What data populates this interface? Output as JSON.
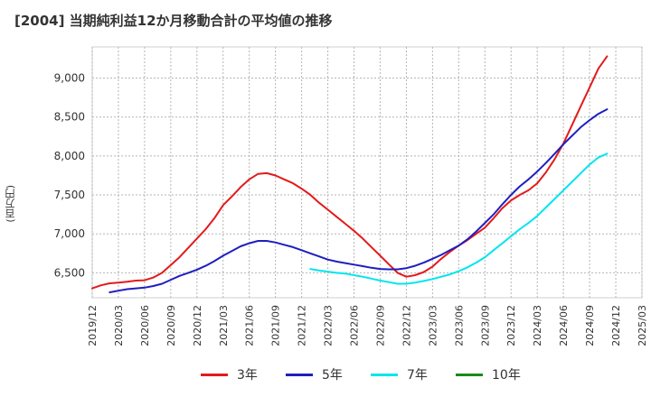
{
  "chart_data": {
    "type": "line",
    "title": "[2004]  当期純利益12か月移動合計の平均値の推移",
    "ylabel": "(百万円)",
    "xlabel": "",
    "ylim": [
      6180,
      9400
    ],
    "y_ticks": [
      6500,
      7000,
      7500,
      8000,
      8500,
      9000
    ],
    "y_tick_labels": [
      "6,500",
      "7,000",
      "7,500",
      "8,000",
      "8,500",
      "9,000"
    ],
    "x_range": [
      "2019-12",
      "2025-03"
    ],
    "x_tick_labels": [
      "2019/12",
      "2020/03",
      "2020/06",
      "2020/09",
      "2020/12",
      "2021/03",
      "2021/06",
      "2021/09",
      "2021/12",
      "2022/03",
      "2022/06",
      "2022/09",
      "2022/12",
      "2023/03",
      "2023/06",
      "2023/09",
      "2023/12",
      "2024/03",
      "2024/06",
      "2024/09",
      "2024/12",
      "2025/03"
    ],
    "grid": true,
    "legend_position": "bottom",
    "series": [
      {
        "name": "3年",
        "color": "#e31a1c",
        "points": [
          [
            "2019-12",
            6300
          ],
          [
            "2020-01",
            6340
          ],
          [
            "2020-02",
            6365
          ],
          [
            "2020-03",
            6375
          ],
          [
            "2020-04",
            6385
          ],
          [
            "2020-05",
            6400
          ],
          [
            "2020-06",
            6405
          ],
          [
            "2020-07",
            6440
          ],
          [
            "2020-08",
            6500
          ],
          [
            "2020-09",
            6600
          ],
          [
            "2020-10",
            6700
          ],
          [
            "2020-11",
            6820
          ],
          [
            "2020-12",
            6940
          ],
          [
            "2021-01",
            7060
          ],
          [
            "2021-02",
            7200
          ],
          [
            "2021-03",
            7370
          ],
          [
            "2021-04",
            7480
          ],
          [
            "2021-05",
            7600
          ],
          [
            "2021-06",
            7700
          ],
          [
            "2021-07",
            7770
          ],
          [
            "2021-08",
            7780
          ],
          [
            "2021-09",
            7750
          ],
          [
            "2021-10",
            7700
          ],
          [
            "2021-11",
            7650
          ],
          [
            "2021-12",
            7580
          ],
          [
            "2022-01",
            7500
          ],
          [
            "2022-02",
            7400
          ],
          [
            "2022-03",
            7310
          ],
          [
            "2022-04",
            7220
          ],
          [
            "2022-05",
            7130
          ],
          [
            "2022-06",
            7040
          ],
          [
            "2022-07",
            6940
          ],
          [
            "2022-08",
            6830
          ],
          [
            "2022-09",
            6720
          ],
          [
            "2022-10",
            6610
          ],
          [
            "2022-11",
            6500
          ],
          [
            "2022-12",
            6450
          ],
          [
            "2022-12",
            6450
          ],
          [
            "2023-01",
            6470
          ],
          [
            "2023-02",
            6510
          ],
          [
            "2023-03",
            6580
          ],
          [
            "2023-04",
            6680
          ],
          [
            "2023-05",
            6770
          ],
          [
            "2023-06",
            6850
          ],
          [
            "2023-07",
            6920
          ],
          [
            "2023-08",
            7000
          ],
          [
            "2023-09",
            7080
          ],
          [
            "2023-10",
            7200
          ],
          [
            "2023-11",
            7330
          ],
          [
            "2023-12",
            7430
          ],
          [
            "2024-01",
            7500
          ],
          [
            "2024-02",
            7560
          ],
          [
            "2024-03",
            7650
          ],
          [
            "2024-04",
            7790
          ],
          [
            "2024-05",
            7960
          ],
          [
            "2024-06",
            8160
          ],
          [
            "2024-07",
            8400
          ],
          [
            "2024-08",
            8640
          ],
          [
            "2024-09",
            8880
          ],
          [
            "2024-10",
            9120
          ],
          [
            "2024-11",
            9280
          ]
        ]
      },
      {
        "name": "5年",
        "color": "#1f1fbf",
        "points": [
          [
            "2020-02",
            6250
          ],
          [
            "2020-03",
            6270
          ],
          [
            "2020-04",
            6290
          ],
          [
            "2020-05",
            6300
          ],
          [
            "2020-06",
            6310
          ],
          [
            "2020-07",
            6330
          ],
          [
            "2020-08",
            6360
          ],
          [
            "2020-09",
            6410
          ],
          [
            "2020-10",
            6460
          ],
          [
            "2020-11",
            6500
          ],
          [
            "2020-12",
            6540
          ],
          [
            "2021-01",
            6590
          ],
          [
            "2021-02",
            6650
          ],
          [
            "2021-03",
            6720
          ],
          [
            "2021-04",
            6780
          ],
          [
            "2021-05",
            6840
          ],
          [
            "2021-06",
            6880
          ],
          [
            "2021-07",
            6910
          ],
          [
            "2021-08",
            6910
          ],
          [
            "2021-09",
            6890
          ],
          [
            "2021-10",
            6860
          ],
          [
            "2021-11",
            6830
          ],
          [
            "2021-12",
            6790
          ],
          [
            "2022-01",
            6750
          ],
          [
            "2022-02",
            6710
          ],
          [
            "2022-03",
            6670
          ],
          [
            "2022-04",
            6645
          ],
          [
            "2022-05",
            6625
          ],
          [
            "2022-06",
            6605
          ],
          [
            "2022-07",
            6585
          ],
          [
            "2022-08",
            6565
          ],
          [
            "2022-09",
            6550
          ],
          [
            "2022-10",
            6545
          ],
          [
            "2022-11",
            6545
          ],
          [
            "2022-12",
            6560
          ],
          [
            "2023-01",
            6590
          ],
          [
            "2023-02",
            6630
          ],
          [
            "2023-03",
            6680
          ],
          [
            "2023-04",
            6730
          ],
          [
            "2023-05",
            6790
          ],
          [
            "2023-06",
            6850
          ],
          [
            "2023-07",
            6930
          ],
          [
            "2023-08",
            7030
          ],
          [
            "2023-09",
            7140
          ],
          [
            "2023-10",
            7250
          ],
          [
            "2023-11",
            7380
          ],
          [
            "2023-12",
            7500
          ],
          [
            "2024-01",
            7610
          ],
          [
            "2024-02",
            7700
          ],
          [
            "2024-03",
            7800
          ],
          [
            "2024-04",
            7910
          ],
          [
            "2024-05",
            8030
          ],
          [
            "2024-06",
            8150
          ],
          [
            "2024-07",
            8260
          ],
          [
            "2024-08",
            8370
          ],
          [
            "2024-09",
            8460
          ],
          [
            "2024-10",
            8540
          ],
          [
            "2024-11",
            8600
          ]
        ]
      },
      {
        "name": "7年",
        "color": "#00e5ee",
        "points": [
          [
            "2022-01",
            6550
          ],
          [
            "2022-02",
            6530
          ],
          [
            "2022-03",
            6515
          ],
          [
            "2022-04",
            6500
          ],
          [
            "2022-05",
            6490
          ],
          [
            "2022-06",
            6470
          ],
          [
            "2022-07",
            6450
          ],
          [
            "2022-08",
            6425
          ],
          [
            "2022-09",
            6400
          ],
          [
            "2022-10",
            6380
          ],
          [
            "2022-11",
            6360
          ],
          [
            "2022-12",
            6360
          ],
          [
            "2023-01",
            6375
          ],
          [
            "2023-02",
            6395
          ],
          [
            "2023-03",
            6420
          ],
          [
            "2023-04",
            6450
          ],
          [
            "2023-05",
            6480
          ],
          [
            "2023-06",
            6520
          ],
          [
            "2023-07",
            6570
          ],
          [
            "2023-08",
            6630
          ],
          [
            "2023-09",
            6700
          ],
          [
            "2023-10",
            6790
          ],
          [
            "2023-11",
            6880
          ],
          [
            "2023-12",
            6970
          ],
          [
            "2024-01",
            7060
          ],
          [
            "2024-02",
            7140
          ],
          [
            "2024-03",
            7230
          ],
          [
            "2024-04",
            7340
          ],
          [
            "2024-05",
            7450
          ],
          [
            "2024-06",
            7560
          ],
          [
            "2024-07",
            7670
          ],
          [
            "2024-08",
            7780
          ],
          [
            "2024-09",
            7890
          ],
          [
            "2024-10",
            7980
          ],
          [
            "2024-11",
            8030
          ]
        ]
      },
      {
        "name": "10年",
        "color": "#1a8a1a",
        "points": []
      }
    ]
  }
}
